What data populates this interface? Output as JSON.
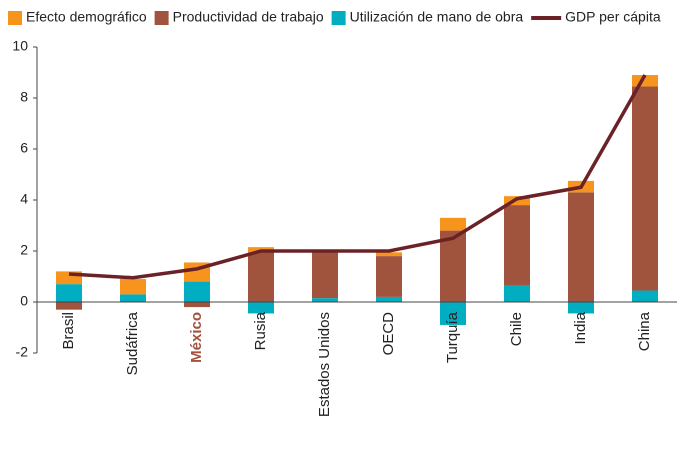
{
  "chart_data": {
    "type": "bar",
    "stacked": true,
    "categories": [
      "Brasil",
      "Sudáfrica",
      "México",
      "Rusia",
      "Estados Unidos",
      "OECD",
      "Turquía",
      "Chile",
      "India",
      "China"
    ],
    "highlight_index": 2,
    "highlight_color": "#a0533d",
    "series": [
      {
        "name": "Efecto demográfico",
        "color": "#f7941d",
        "values": [
          0.5,
          0.6,
          0.75,
          0.2,
          0,
          0.15,
          0.5,
          0.35,
          0.45,
          0.45
        ]
      },
      {
        "name": "Productividad de trabajo",
        "color": "#a0533d",
        "values": [
          -0.3,
          0,
          -0.2,
          1.95,
          1.8,
          1.6,
          2.8,
          3.15,
          4.3,
          8.0
        ]
      },
      {
        "name": "Utilización de mano de obra",
        "color": "#00adc1",
        "values": [
          0.7,
          0.3,
          0.8,
          -0.45,
          0.15,
          0.2,
          -0.9,
          0.65,
          -0.45,
          0.45
        ]
      },
      {
        "name": "GDP per cápita",
        "color": "#6b2226",
        "type": "line",
        "values": [
          1.1,
          0.95,
          1.3,
          2.0,
          2.0,
          2.0,
          2.5,
          4.05,
          4.5,
          8.9
        ]
      }
    ],
    "ylim": [
      -2,
      10
    ],
    "yticks": [
      -2,
      0,
      2,
      4,
      6,
      8,
      10
    ],
    "legend": "top"
  }
}
